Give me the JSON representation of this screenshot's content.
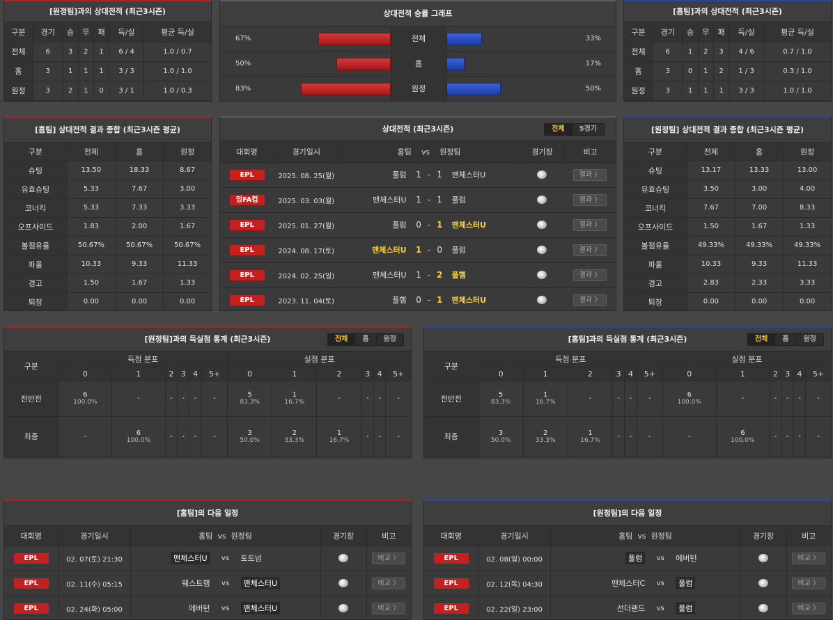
{
  "colors": {
    "accent_red": "#c42020",
    "accent_blue": "#2448a8",
    "highlight": "#f7d038"
  },
  "away_h2h": {
    "title": "[원정팀]과의 상대전적 (최근3시즌)",
    "headers": [
      "구분",
      "경기",
      "승",
      "무",
      "패",
      "득/실",
      "평균 득/실"
    ],
    "rows": [
      [
        "전체",
        "6",
        "3",
        "2",
        "1",
        "6 / 4",
        "1.0 / 0.7"
      ],
      [
        "홈",
        "3",
        "1",
        "1",
        "1",
        "3 / 3",
        "1.0 / 1.0"
      ],
      [
        "원정",
        "3",
        "2",
        "1",
        "0",
        "3 / 1",
        "1.0 / 0.3"
      ]
    ]
  },
  "home_h2h": {
    "title": "[홈팀]과의 상대전적 (최근3시즌)",
    "headers": [
      "구분",
      "경기",
      "승",
      "무",
      "패",
      "득/실",
      "평균 득/실"
    ],
    "rows": [
      [
        "전체",
        "6",
        "1",
        "2",
        "3",
        "4 / 6",
        "0.7 / 1.0"
      ],
      [
        "홈",
        "3",
        "0",
        "1",
        "2",
        "1 / 3",
        "0.3 / 1.0"
      ],
      [
        "원정",
        "3",
        "1",
        "1",
        "1",
        "3 / 3",
        "1.0 / 1.0"
      ]
    ]
  },
  "graph": {
    "title": "상대전적 승률 그래프",
    "rows": [
      {
        "label": "전체",
        "left_pct": "67%",
        "right_pct": "33%",
        "left": 67,
        "right": 33
      },
      {
        "label": "홈",
        "left_pct": "50%",
        "right_pct": "17%",
        "left": 50,
        "right": 17
      },
      {
        "label": "원정",
        "left_pct": "83%",
        "right_pct": "50%",
        "left": 83,
        "right": 50
      }
    ]
  },
  "home_summary": {
    "title": "[홈팀] 상대전적 결과 종합 (최근3시즌 평균)",
    "headers": [
      "구분",
      "전체",
      "홈",
      "원정"
    ],
    "rows": [
      [
        "슈팅",
        "13.50",
        "18.33",
        "8.67"
      ],
      [
        "유효슈팅",
        "5.33",
        "7.67",
        "3.00"
      ],
      [
        "코너킥",
        "5.33",
        "7.33",
        "3.33"
      ],
      [
        "오프사이드",
        "1.83",
        "2.00",
        "1.67"
      ],
      [
        "볼점유율",
        "50.67%",
        "50.67%",
        "50.67%"
      ],
      [
        "파울",
        "10.33",
        "9.33",
        "11.33"
      ],
      [
        "경고",
        "1.50",
        "1.67",
        "1.33"
      ],
      [
        "퇴장",
        "0.00",
        "0.00",
        "0.00"
      ]
    ]
  },
  "away_summary": {
    "title": "[원정팀] 상대전적 결과 종합 (최근3시즌 평균)",
    "headers": [
      "구분",
      "전체",
      "홈",
      "원정"
    ],
    "rows": [
      [
        "슈팅",
        "13.17",
        "13.33",
        "13.00"
      ],
      [
        "유효슈팅",
        "3.50",
        "3.00",
        "4.00"
      ],
      [
        "코너킥",
        "7.67",
        "7.00",
        "8.33"
      ],
      [
        "오프사이드",
        "1.50",
        "1.67",
        "1.33"
      ],
      [
        "볼점유율",
        "49.33%",
        "49.33%",
        "49.33%"
      ],
      [
        "파울",
        "10.33",
        "9.33",
        "11.33"
      ],
      [
        "경고",
        "2.83",
        "2.33",
        "3.33"
      ],
      [
        "퇴장",
        "0.00",
        "0.00",
        "0.00"
      ]
    ]
  },
  "h2h_matches": {
    "title": "상대전적 (최근3시즌)",
    "tabs": [
      "전체",
      "5경기"
    ],
    "headers": {
      "league": "대회명",
      "date": "경기일시",
      "home": "홈팀",
      "vs": "vs",
      "away": "원정팀",
      "venue": "경기장",
      "note": "비고"
    },
    "button": "결과 〉",
    "rows": [
      {
        "league": "EPL",
        "date": "2025. 08. 25(월)",
        "home": "풀럼",
        "hs": "1",
        "dash": "-",
        "as": "1",
        "away": "맨체스터U",
        "win": ""
      },
      {
        "league": "잉FA컵",
        "date": "2025. 03. 03(월)",
        "home": "맨체스터U",
        "hs": "1",
        "dash": "-",
        "as": "1",
        "away": "풀럼",
        "win": ""
      },
      {
        "league": "EPL",
        "date": "2025. 01. 27(월)",
        "home": "풀럼",
        "hs": "0",
        "dash": "-",
        "as": "1",
        "away": "맨체스터U",
        "win": "away"
      },
      {
        "league": "EPL",
        "date": "2024. 08. 17(토)",
        "home": "맨체스터U",
        "hs": "1",
        "dash": "-",
        "as": "0",
        "away": "풀럼",
        "win": "home"
      },
      {
        "league": "EPL",
        "date": "2024. 02. 25(일)",
        "home": "맨체스터U",
        "hs": "1",
        "dash": "-",
        "as": "2",
        "away": "풀햄",
        "win": "away"
      },
      {
        "league": "EPL",
        "date": "2023. 11. 04(토)",
        "home": "풀햄",
        "hs": "0",
        "dash": "-",
        "as": "1",
        "away": "맨체스터U",
        "win": "away"
      }
    ]
  },
  "away_goals": {
    "title": "[원정팀]과의 득실점 통계 (최근3시즌)",
    "tabs": [
      "전체",
      "홈",
      "원정"
    ],
    "col_label": "구분",
    "scored_label": "득점 분포",
    "conceded_label": "실점 분포",
    "buckets": [
      "0",
      "1",
      "2",
      "3",
      "4",
      "5+"
    ],
    "rows": [
      {
        "label": "전반전",
        "cells": [
          [
            "6",
            "100.0%"
          ],
          [
            "-",
            ""
          ],
          [
            "-",
            ""
          ],
          [
            "-",
            ""
          ],
          [
            "-",
            ""
          ],
          [
            "-",
            ""
          ],
          [
            "5",
            "83.3%"
          ],
          [
            "1",
            "16.7%"
          ],
          [
            "-",
            ""
          ],
          [
            "-",
            ""
          ],
          [
            "-",
            ""
          ],
          [
            "-",
            ""
          ]
        ]
      },
      {
        "label": "최종",
        "cells": [
          [
            "-",
            ""
          ],
          [
            "6",
            "100.0%"
          ],
          [
            "-",
            ""
          ],
          [
            "-",
            ""
          ],
          [
            "-",
            ""
          ],
          [
            "-",
            ""
          ],
          [
            "3",
            "50.0%"
          ],
          [
            "2",
            "33.3%"
          ],
          [
            "1",
            "16.7%"
          ],
          [
            "-",
            ""
          ],
          [
            "-",
            ""
          ],
          [
            "-",
            ""
          ]
        ]
      }
    ]
  },
  "home_goals": {
    "title": "[홈팀]과의 득실점 통계 (최근3시즌)",
    "tabs": [
      "전체",
      "홈",
      "원정"
    ],
    "col_label": "구분",
    "scored_label": "득점 분포",
    "conceded_label": "실점 분포",
    "buckets": [
      "0",
      "1",
      "2",
      "3",
      "4",
      "5+"
    ],
    "rows": [
      {
        "label": "전반전",
        "cells": [
          [
            "5",
            "83.3%"
          ],
          [
            "1",
            "16.7%"
          ],
          [
            "-",
            ""
          ],
          [
            "-",
            ""
          ],
          [
            "-",
            ""
          ],
          [
            "-",
            ""
          ],
          [
            "6",
            "100.0%"
          ],
          [
            "-",
            ""
          ],
          [
            "-",
            ""
          ],
          [
            "-",
            ""
          ],
          [
            "-",
            ""
          ],
          [
            "-",
            ""
          ]
        ]
      },
      {
        "label": "최종",
        "cells": [
          [
            "3",
            "50.0%"
          ],
          [
            "2",
            "33.3%"
          ],
          [
            "1",
            "16.7%"
          ],
          [
            "-",
            ""
          ],
          [
            "-",
            ""
          ],
          [
            "-",
            ""
          ],
          [
            "-",
            ""
          ],
          [
            "6",
            "100.0%"
          ],
          [
            "-",
            ""
          ],
          [
            "-",
            ""
          ],
          [
            "-",
            ""
          ],
          [
            "-",
            ""
          ]
        ]
      }
    ]
  },
  "home_next": {
    "title": "[홈팀]의 다음 일정",
    "headers": {
      "league": "대회명",
      "date": "경기일시",
      "home": "홈팀",
      "vs": "vs",
      "away": "원정팀",
      "venue": "경기장",
      "note": "비고"
    },
    "button": "비교 〉",
    "rows": [
      {
        "league": "EPL",
        "date": "02. 07(토) 21:30",
        "home": "맨체스터U",
        "away": "토트넘",
        "boxed": "home"
      },
      {
        "league": "EPL",
        "date": "02. 11(수) 05:15",
        "home": "웨스트햄",
        "away": "맨체스터U",
        "boxed": "away"
      },
      {
        "league": "EPL",
        "date": "02. 24(화) 05:00",
        "home": "에버턴",
        "away": "맨체스터U",
        "boxed": "away"
      }
    ]
  },
  "away_next": {
    "title": "[원정팀]의 다음 일정",
    "headers": {
      "league": "대회명",
      "date": "경기일시",
      "home": "홈팀",
      "vs": "vs",
      "away": "원정팀",
      "venue": "경기장",
      "note": "비고"
    },
    "button": "비교 〉",
    "rows": [
      {
        "league": "EPL",
        "date": "02. 08(일) 00:00",
        "home": "풀럼",
        "away": "에버턴",
        "boxed": "home"
      },
      {
        "league": "EPL",
        "date": "02. 12(목) 04:30",
        "home": "맨체스터C",
        "away": "풀럼",
        "boxed": "away"
      },
      {
        "league": "EPL",
        "date": "02. 22(일) 23:00",
        "home": "선더랜드",
        "away": "풀럼",
        "boxed": "away"
      }
    ]
  }
}
